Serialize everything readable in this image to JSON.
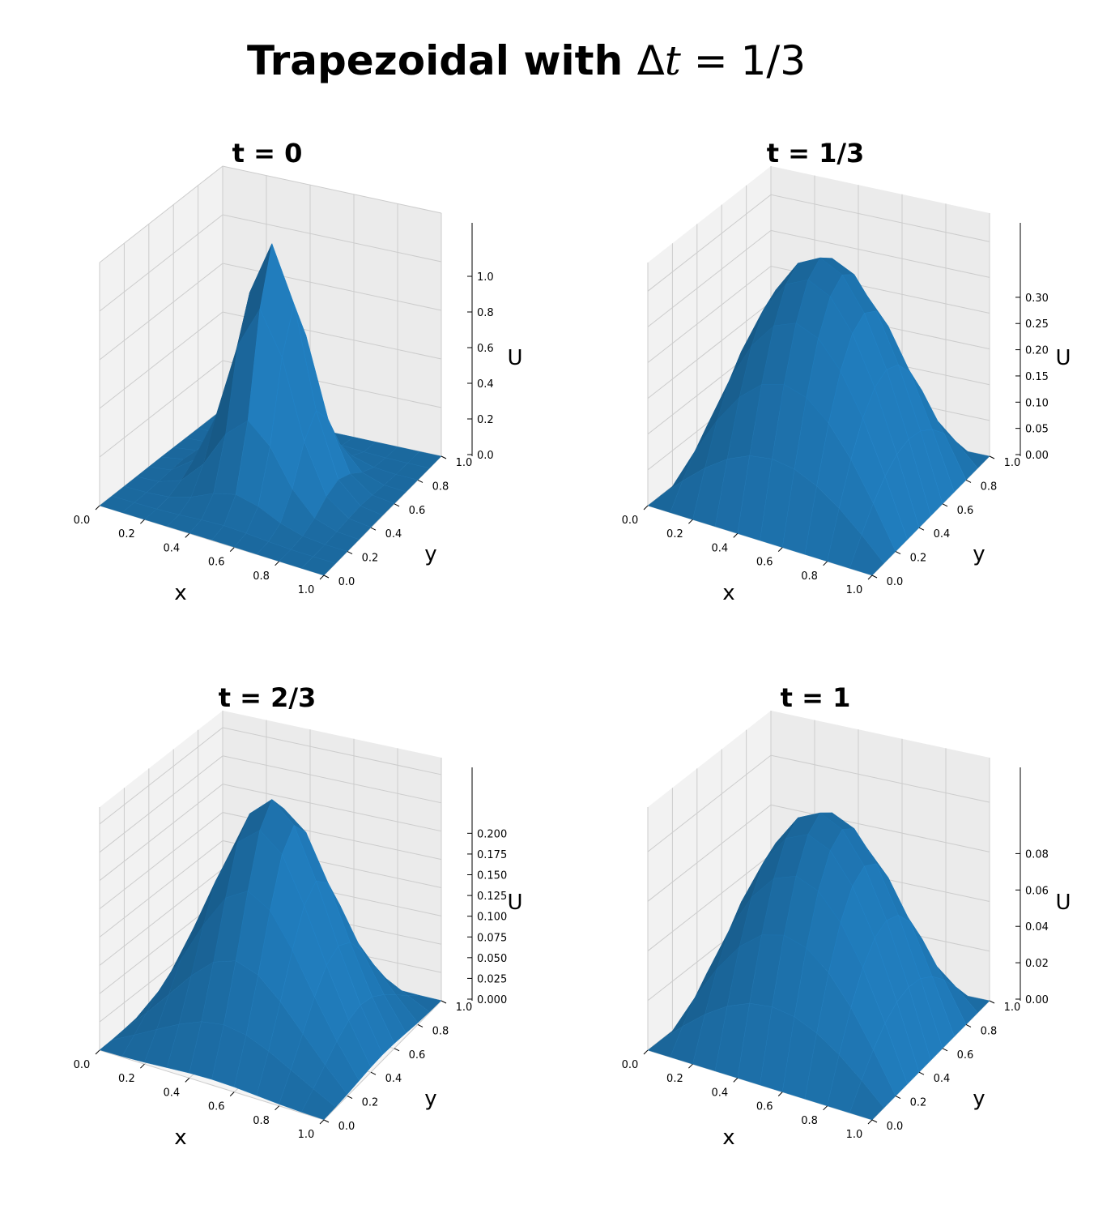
{
  "figure": {
    "suptitle_bold": "Trapezoidal with ",
    "suptitle_math_delta": "Δ",
    "suptitle_math_t": "t",
    "suptitle_math_rest": " = 1/3"
  },
  "colors": {
    "surface": "#1f77b4",
    "pane_left": "#f2f2f2",
    "pane_right": "#ebebeb",
    "pane_floor": "#f5f5f5",
    "grid": "#cccccc"
  },
  "chart_data": [
    {
      "type": "surface",
      "title": "t = 0",
      "xlabel": "x",
      "ylabel": "y",
      "zlabel": "U",
      "xlim": [
        0,
        1
      ],
      "ylim": [
        0,
        1
      ],
      "zlim": [
        0,
        1
      ],
      "x_ticks": [
        "0.0",
        "0.2",
        "0.4",
        "0.6",
        "0.8",
        "1.0"
      ],
      "y_ticks": [
        "0.0",
        "0.2",
        "0.4",
        "0.6",
        "0.8",
        "1.0"
      ],
      "z_ticks": [
        "0.0",
        "0.2",
        "0.4",
        "0.6",
        "0.8",
        "1.0"
      ],
      "z_tick_values": [
        0,
        0.2,
        0.4,
        0.6,
        0.8,
        1.0
      ],
      "grid_n": 11,
      "surface": {
        "kind": "gaussian",
        "peak": 1.0,
        "cx": 0.5,
        "cy": 0.5,
        "sigma": 0.14
      }
    },
    {
      "type": "surface",
      "title": "t = 1/3",
      "xlabel": "x",
      "ylabel": "y",
      "zlabel": "U",
      "xlim": [
        0,
        1
      ],
      "ylim": [
        0,
        1
      ],
      "zlim": [
        0,
        0.34
      ],
      "x_ticks": [
        "0.0",
        "0.2",
        "0.4",
        "0.6",
        "0.8",
        "1.0"
      ],
      "y_ticks": [
        "0.0",
        "0.2",
        "0.4",
        "0.6",
        "0.8",
        "1.0"
      ],
      "z_ticks": [
        "0.00",
        "0.05",
        "0.10",
        "0.15",
        "0.20",
        "0.25",
        "0.30"
      ],
      "z_tick_values": [
        0,
        0.05,
        0.1,
        0.15,
        0.2,
        0.25,
        0.3
      ],
      "grid_n": 11,
      "surface": {
        "kind": "sine",
        "peak": 0.32
      }
    },
    {
      "type": "surface",
      "title": "t = 2/3",
      "xlabel": "x",
      "ylabel": "y",
      "zlabel": "U",
      "xlim": [
        0,
        1
      ],
      "ylim": [
        0,
        1
      ],
      "zlim": [
        0,
        0.215
      ],
      "x_ticks": [
        "0.0",
        "0.2",
        "0.4",
        "0.6",
        "0.8",
        "1.0"
      ],
      "y_ticks": [
        "0.0",
        "0.2",
        "0.4",
        "0.6",
        "0.8",
        "1.0"
      ],
      "z_ticks": [
        "0.000",
        "0.025",
        "0.050",
        "0.075",
        "0.100",
        "0.125",
        "0.150",
        "0.175",
        "0.200"
      ],
      "z_tick_values": [
        0,
        0.025,
        0.05,
        0.075,
        0.1,
        0.125,
        0.15,
        0.175,
        0.2
      ],
      "grid_n": 11,
      "surface": {
        "kind": "mixed",
        "peak": 0.205,
        "cx": 0.5,
        "cy": 0.5,
        "sigma": 0.2,
        "blend": 0.55
      }
    },
    {
      "type": "surface",
      "title": "t = 1",
      "xlabel": "x",
      "ylabel": "y",
      "zlabel": "U",
      "xlim": [
        0,
        1
      ],
      "ylim": [
        0,
        1
      ],
      "zlim": [
        0,
        0.098
      ],
      "x_ticks": [
        "0.0",
        "0.2",
        "0.4",
        "0.6",
        "0.8",
        "1.0"
      ],
      "y_ticks": [
        "0.0",
        "0.2",
        "0.4",
        "0.6",
        "0.8",
        "1.0"
      ],
      "z_ticks": [
        "0.00",
        "0.02",
        "0.04",
        "0.06",
        "0.08"
      ],
      "z_tick_values": [
        0,
        0.02,
        0.04,
        0.06,
        0.08
      ],
      "grid_n": 11,
      "surface": {
        "kind": "sine",
        "peak": 0.088
      }
    }
  ]
}
